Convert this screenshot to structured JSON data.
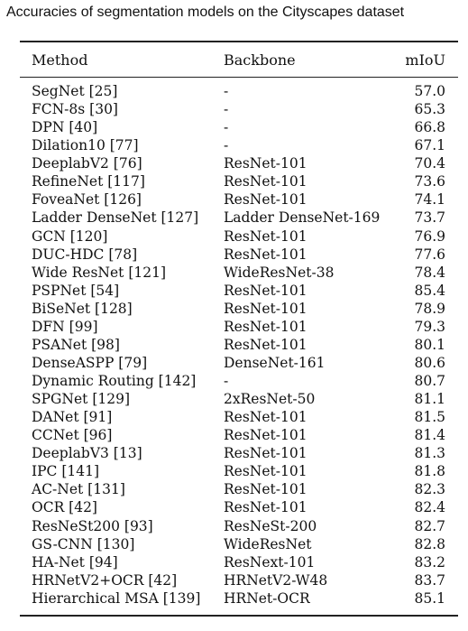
{
  "caption": "Accuracies of segmentation models on the Cityscapes dataset",
  "columns": {
    "method": "Method",
    "backbone": "Backbone",
    "miou": "mIoU"
  },
  "rows": [
    {
      "method": "SegNet [25]",
      "backbone": "-",
      "miou": "57.0"
    },
    {
      "method": "FCN-8s [30]",
      "backbone": "-",
      "miou": "65.3"
    },
    {
      "method": "DPN [40]",
      "backbone": "-",
      "miou": "66.8"
    },
    {
      "method": "Dilation10 [77]",
      "backbone": "-",
      "miou": "67.1"
    },
    {
      "method": "DeeplabV2 [76]",
      "backbone": "ResNet-101",
      "miou": "70.4"
    },
    {
      "method": "RefineNet [117]",
      "backbone": "ResNet-101",
      "miou": "73.6"
    },
    {
      "method": "FoveaNet [126]",
      "backbone": "ResNet-101",
      "miou": "74.1"
    },
    {
      "method": "Ladder DenseNet [127]",
      "backbone": "Ladder DenseNet-169",
      "miou": "73.7"
    },
    {
      "method": "GCN [120]",
      "backbone": "ResNet-101",
      "miou": "76.9"
    },
    {
      "method": "DUC-HDC [78]",
      "backbone": "ResNet-101",
      "miou": "77.6"
    },
    {
      "method": "Wide ResNet [121]",
      "backbone": "WideResNet-38",
      "miou": "78.4"
    },
    {
      "method": "PSPNet [54]",
      "backbone": "ResNet-101",
      "miou": "85.4"
    },
    {
      "method": "BiSeNet [128]",
      "backbone": "ResNet-101",
      "miou": "78.9"
    },
    {
      "method": "DFN [99]",
      "backbone": "ResNet-101",
      "miou": "79.3"
    },
    {
      "method": "PSANet [98]",
      "backbone": "ResNet-101",
      "miou": "80.1"
    },
    {
      "method": "DenseASPP [79]",
      "backbone": "DenseNet-161",
      "miou": "80.6"
    },
    {
      "method": "Dynamic Routing [142]",
      "backbone": "-",
      "miou": "80.7"
    },
    {
      "method": "SPGNet [129]",
      "backbone": "2xResNet-50",
      "miou": "81.1"
    },
    {
      "method": "DANet [91]",
      "backbone": "ResNet-101",
      "miou": "81.5"
    },
    {
      "method": "CCNet [96]",
      "backbone": "ResNet-101",
      "miou": "81.4"
    },
    {
      "method": "DeeplabV3 [13]",
      "backbone": "ResNet-101",
      "miou": "81.3"
    },
    {
      "method": "IPC [141]",
      "backbone": "ResNet-101",
      "miou": "81.8"
    },
    {
      "method": "AC-Net [131]",
      "backbone": "ResNet-101",
      "miou": "82.3"
    },
    {
      "method": "OCR [42]",
      "backbone": "ResNet-101",
      "miou": "82.4"
    },
    {
      "method": "ResNeSt200 [93]",
      "backbone": "ResNeSt-200",
      "miou": "82.7"
    },
    {
      "method": "GS-CNN [130]",
      "backbone": "WideResNet",
      "miou": "82.8"
    },
    {
      "method": "HA-Net [94]",
      "backbone": "ResNext-101",
      "miou": "83.2"
    },
    {
      "method": "HRNetV2+OCR [42]",
      "backbone": "HRNetV2-W48",
      "miou": "83.7"
    },
    {
      "method": "Hierarchical MSA [139]",
      "backbone": "HRNet-OCR",
      "miou": "85.1"
    }
  ]
}
